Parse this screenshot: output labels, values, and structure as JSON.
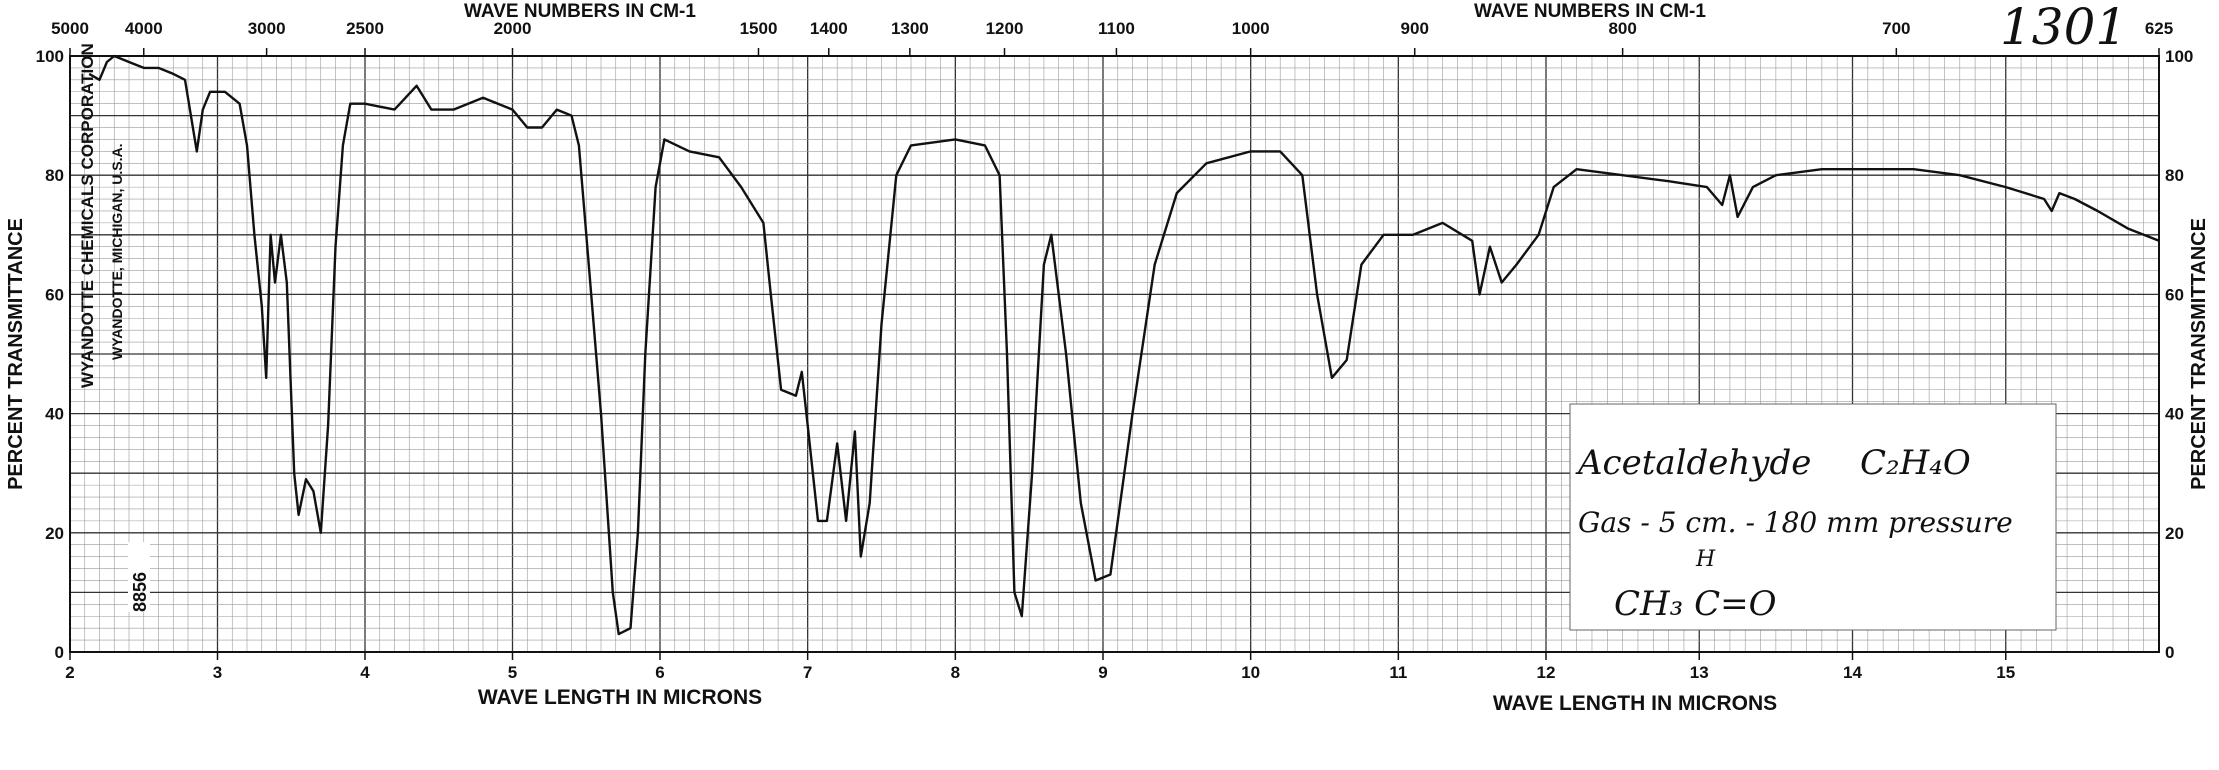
{
  "page_label": "1301",
  "chart_data": {
    "type": "line",
    "title": "",
    "top_axis_label_left": "WAVE NUMBERS IN CM-1",
    "top_axis_label_right": "WAVE NUMBERS IN CM-1",
    "bottom_axis_label_left": "WAVE LENGTH IN MICRONS",
    "bottom_axis_label_right": "WAVE LENGTH IN MICRONS",
    "ylabel_left": "PERCENT TRANSMITTANCE",
    "ylabel_right": "PERCENT TRANSMITTANCE",
    "xlim": [
      2,
      16
    ],
    "ylim": [
      0,
      100
    ],
    "x_ticks": [
      {
        "v": 2,
        "label": "2"
      },
      {
        "v": 3,
        "label": "3"
      },
      {
        "v": 4,
        "label": "4"
      },
      {
        "v": 5,
        "label": "5"
      },
      {
        "v": 6,
        "label": "6"
      },
      {
        "v": 7,
        "label": "7"
      },
      {
        "v": 8,
        "label": "8"
      },
      {
        "v": 9,
        "label": "9"
      },
      {
        "v": 10,
        "label": "10"
      },
      {
        "v": 11,
        "label": "11"
      },
      {
        "v": 12,
        "label": "12"
      },
      {
        "v": 13,
        "label": "13"
      },
      {
        "v": 14,
        "label": "14"
      },
      {
        "v": 15,
        "label": "15"
      }
    ],
    "top_ticks": [
      {
        "v": 2.0,
        "label": "5000"
      },
      {
        "v": 2.5,
        "label": "4000"
      },
      {
        "v": 3.333,
        "label": "3000"
      },
      {
        "v": 4.0,
        "label": "2500"
      },
      {
        "v": 5.0,
        "label": "2000"
      },
      {
        "v": 6.667,
        "label": "1500"
      },
      {
        "v": 7.143,
        "label": "1400"
      },
      {
        "v": 7.692,
        "label": "1300"
      },
      {
        "v": 8.333,
        "label": "1200"
      },
      {
        "v": 9.091,
        "label": "1100"
      },
      {
        "v": 10.0,
        "label": "1000"
      },
      {
        "v": 11.111,
        "label": "900"
      },
      {
        "v": 12.5,
        "label": "800"
      },
      {
        "v": 14.286,
        "label": "700"
      },
      {
        "v": 16.0,
        "label": "625"
      }
    ],
    "y_ticks": [
      0,
      20,
      40,
      60,
      80,
      100
    ],
    "grid": true,
    "series": [
      {
        "color": "#111111",
        "points": [
          [
            2.13,
            97
          ],
          [
            2.2,
            96
          ],
          [
            2.25,
            99
          ],
          [
            2.3,
            100
          ],
          [
            2.4,
            99
          ],
          [
            2.5,
            98
          ],
          [
            2.6,
            98
          ],
          [
            2.7,
            97
          ],
          [
            2.78,
            96
          ],
          [
            2.82,
            90
          ],
          [
            2.86,
            84
          ],
          [
            2.9,
            91
          ],
          [
            2.95,
            94
          ],
          [
            3.05,
            94
          ],
          [
            3.15,
            92
          ],
          [
            3.2,
            85
          ],
          [
            3.25,
            70
          ],
          [
            3.3,
            58
          ],
          [
            3.33,
            46
          ],
          [
            3.36,
            70
          ],
          [
            3.39,
            62
          ],
          [
            3.43,
            70
          ],
          [
            3.47,
            62
          ],
          [
            3.52,
            30
          ],
          [
            3.55,
            23
          ],
          [
            3.6,
            29
          ],
          [
            3.65,
            27
          ],
          [
            3.7,
            20
          ],
          [
            3.75,
            38
          ],
          [
            3.8,
            68
          ],
          [
            3.85,
            85
          ],
          [
            3.9,
            92
          ],
          [
            4.0,
            92
          ],
          [
            4.2,
            91
          ],
          [
            4.35,
            95
          ],
          [
            4.45,
            91
          ],
          [
            4.6,
            91
          ],
          [
            4.8,
            93
          ],
          [
            5.0,
            91
          ],
          [
            5.1,
            88
          ],
          [
            5.2,
            88
          ],
          [
            5.3,
            91
          ],
          [
            5.4,
            90
          ],
          [
            5.45,
            85
          ],
          [
            5.5,
            70
          ],
          [
            5.6,
            40
          ],
          [
            5.68,
            10
          ],
          [
            5.72,
            3
          ],
          [
            5.8,
            4
          ],
          [
            5.85,
            20
          ],
          [
            5.9,
            50
          ],
          [
            5.97,
            78
          ],
          [
            6.03,
            86
          ],
          [
            6.2,
            84
          ],
          [
            6.4,
            83
          ],
          [
            6.55,
            78
          ],
          [
            6.7,
            72
          ],
          [
            6.75,
            60
          ],
          [
            6.82,
            44
          ],
          [
            6.92,
            43
          ],
          [
            6.96,
            47
          ],
          [
            7.0,
            38
          ],
          [
            7.07,
            22
          ],
          [
            7.13,
            22
          ],
          [
            7.2,
            35
          ],
          [
            7.26,
            22
          ],
          [
            7.32,
            37
          ],
          [
            7.36,
            16
          ],
          [
            7.42,
            25
          ],
          [
            7.5,
            55
          ],
          [
            7.6,
            80
          ],
          [
            7.7,
            85
          ],
          [
            8.0,
            86
          ],
          [
            8.2,
            85
          ],
          [
            8.3,
            80
          ],
          [
            8.35,
            50
          ],
          [
            8.4,
            10
          ],
          [
            8.45,
            6
          ],
          [
            8.52,
            30
          ],
          [
            8.6,
            65
          ],
          [
            8.65,
            70
          ],
          [
            8.75,
            50
          ],
          [
            8.85,
            25
          ],
          [
            8.95,
            12
          ],
          [
            9.05,
            13
          ],
          [
            9.2,
            40
          ],
          [
            9.35,
            65
          ],
          [
            9.5,
            77
          ],
          [
            9.7,
            82
          ],
          [
            10.0,
            84
          ],
          [
            10.2,
            84
          ],
          [
            10.35,
            80
          ],
          [
            10.45,
            60
          ],
          [
            10.55,
            46
          ],
          [
            10.65,
            49
          ],
          [
            10.75,
            65
          ],
          [
            10.9,
            70
          ],
          [
            11.1,
            70
          ],
          [
            11.3,
            72
          ],
          [
            11.5,
            69
          ],
          [
            11.55,
            60
          ],
          [
            11.62,
            68
          ],
          [
            11.7,
            62
          ],
          [
            11.8,
            65
          ],
          [
            11.95,
            70
          ],
          [
            12.05,
            78
          ],
          [
            12.2,
            81
          ],
          [
            12.5,
            80
          ],
          [
            12.8,
            79
          ],
          [
            13.05,
            78
          ],
          [
            13.15,
            75
          ],
          [
            13.2,
            80
          ],
          [
            13.25,
            73
          ],
          [
            13.35,
            78
          ],
          [
            13.5,
            80
          ],
          [
            13.8,
            81
          ],
          [
            14.1,
            81
          ],
          [
            14.4,
            81
          ],
          [
            14.7,
            80
          ],
          [
            15.0,
            78
          ],
          [
            15.25,
            76
          ],
          [
            15.3,
            74
          ],
          [
            15.35,
            77
          ],
          [
            15.45,
            76
          ],
          [
            15.6,
            74
          ],
          [
            15.8,
            71
          ],
          [
            16.0,
            69
          ]
        ]
      }
    ]
  },
  "manufacturer": {
    "name": "WYANDOTTE CHEMICALS CORPORATION",
    "location": "WYANDOTTE, MICHIGAN, U.S.A.",
    "code": "8856"
  },
  "annotation": {
    "compound": "Acetaldehyde",
    "formula": "C₂H₄O",
    "conditions": "Gas - 5 cm. - 180 mm pressure",
    "structure": "CH₃ C=O",
    "structure_h": "H"
  }
}
